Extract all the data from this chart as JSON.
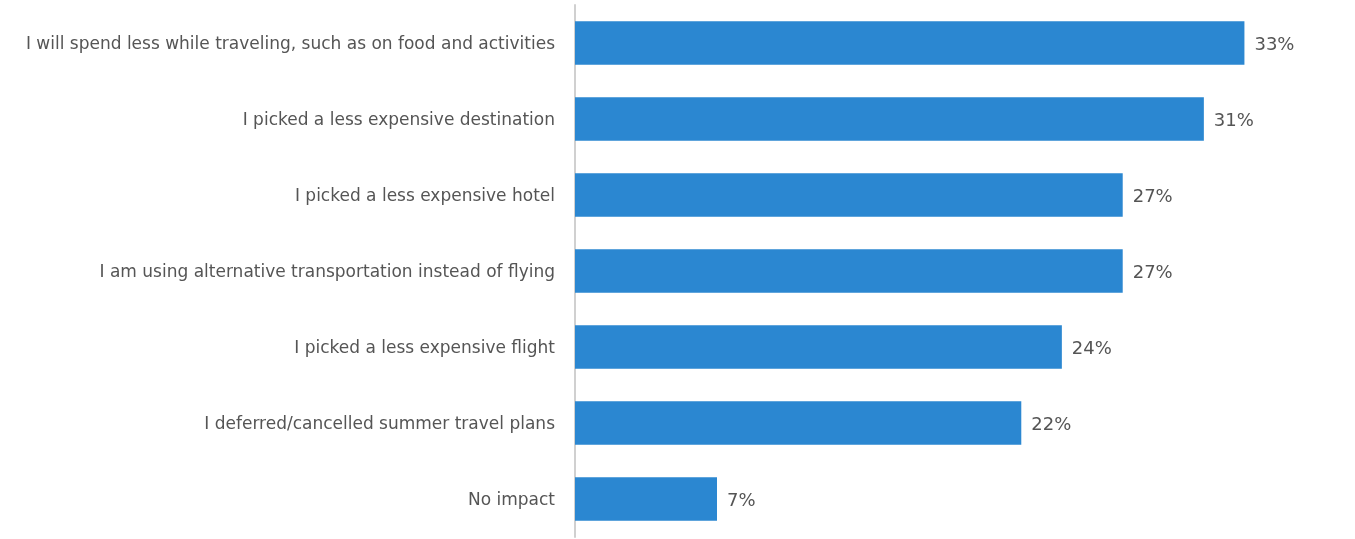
{
  "chart_data": {
    "type": "bar",
    "orientation": "horizontal",
    "categories": [
      "I will spend less while traveling, such as on food and activities",
      "I picked a less expensive destination",
      "I picked a less expensive hotel",
      "I am using alternative transportation instead of flying",
      "I picked a less expensive flight",
      "I deferred/cancelled summer travel plans",
      "No impact"
    ],
    "values": [
      33,
      31,
      27,
      27,
      24,
      22,
      7
    ],
    "value_labels": [
      "33%",
      "31%",
      "27%",
      "27%",
      "24%",
      "22%",
      "7%"
    ],
    "color": "#2b87d1"
  }
}
